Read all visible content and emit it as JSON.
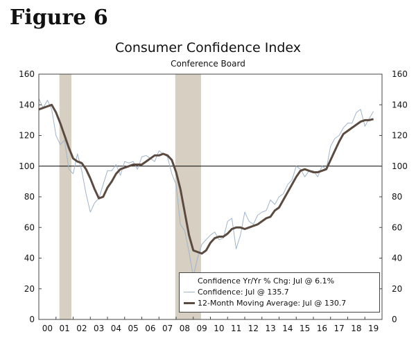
{
  "figure_label": "Figure 6",
  "chart_data": {
    "type": "line",
    "title": "Consumer Confidence Index",
    "subtitle": "Conference Board",
    "xlabel": "",
    "ylabel": "",
    "ylim": [
      0,
      160
    ],
    "y_ticks": [
      0,
      20,
      40,
      60,
      80,
      100,
      120,
      140,
      160
    ],
    "x_range": [
      2000,
      2020
    ],
    "x_tick_labels": [
      "00",
      "01",
      "02",
      "03",
      "04",
      "05",
      "06",
      "07",
      "08",
      "09",
      "10",
      "11",
      "12",
      "13",
      "14",
      "15",
      "16",
      "17",
      "18",
      "19"
    ],
    "reference_line": 100,
    "recessions": [
      [
        2001.2,
        2001.9
      ],
      [
        2007.95,
        2009.45
      ]
    ],
    "grid": false,
    "legend": {
      "placement": "bottom-right",
      "entries": [
        {
          "label": "Confidence Yr/Yr % Chg: Jul @ 6.1%",
          "color": "#ffffff"
        },
        {
          "label": "Confidence: Jul @ 135.7",
          "color": "#9fb4cc"
        },
        {
          "label": "12-Month Moving Average: Jul @ 130.7",
          "color": "#5b4a3f"
        }
      ]
    },
    "colors": {
      "recession": "#d6cfc2",
      "confidence": "#9fb4cc",
      "moving_average": "#5b4a3f",
      "reference": "#000000"
    },
    "series": [
      {
        "name": "Confidence: Jul @ 135.7",
        "x": [
          2000,
          2000.25,
          2000.5,
          2000.75,
          2001,
          2001.25,
          2001.5,
          2001.75,
          2002,
          2002.25,
          2002.5,
          2002.75,
          2003,
          2003.25,
          2003.5,
          2003.75,
          2004,
          2004.25,
          2004.5,
          2004.75,
          2005,
          2005.25,
          2005.5,
          2005.75,
          2006,
          2006.25,
          2006.5,
          2006.75,
          2007,
          2007.25,
          2007.5,
          2007.75,
          2008,
          2008.25,
          2008.5,
          2008.75,
          2009,
          2009.25,
          2009.5,
          2009.75,
          2010,
          2010.25,
          2010.5,
          2010.75,
          2011,
          2011.25,
          2011.5,
          2011.75,
          2012,
          2012.25,
          2012.5,
          2012.75,
          2013,
          2013.25,
          2013.5,
          2013.75,
          2014,
          2014.25,
          2014.5,
          2014.75,
          2015,
          2015.25,
          2015.5,
          2015.75,
          2016,
          2016.25,
          2016.5,
          2016.75,
          2017,
          2017.25,
          2017.5,
          2017.75,
          2018,
          2018.25,
          2018.5,
          2018.75,
          2019,
          2019.25,
          2019.5
        ],
        "values": [
          144,
          138,
          143,
          137,
          120,
          114,
          117,
          98,
          95,
          108,
          97,
          82,
          70,
          76,
          79,
          88,
          97,
          97,
          101,
          94,
          103,
          102,
          103,
          98,
          106,
          107,
          105,
          103,
          110,
          108,
          106,
          95,
          88,
          62,
          58,
          44,
          28,
          40,
          49,
          52,
          55,
          57,
          52,
          53,
          64,
          66,
          46,
          55,
          70,
          64,
          62,
          68,
          70,
          71,
          78,
          75,
          80,
          82,
          88,
          91,
          100,
          98,
          93,
          97,
          97,
          93,
          100,
          98,
          113,
          118,
          120,
          125,
          128,
          128,
          135,
          137,
          126,
          131,
          135.7
        ]
      },
      {
        "name": "12-Month Moving Average: Jul @ 130.7",
        "x": [
          2000,
          2000.25,
          2000.5,
          2000.75,
          2001,
          2001.25,
          2001.5,
          2001.75,
          2002,
          2002.25,
          2002.5,
          2002.75,
          2003,
          2003.25,
          2003.5,
          2003.75,
          2004,
          2004.25,
          2004.5,
          2004.75,
          2005,
          2005.25,
          2005.5,
          2005.75,
          2006,
          2006.25,
          2006.5,
          2006.75,
          2007,
          2007.25,
          2007.5,
          2007.75,
          2008,
          2008.25,
          2008.5,
          2008.75,
          2009,
          2009.25,
          2009.5,
          2009.75,
          2010,
          2010.25,
          2010.5,
          2010.75,
          2011,
          2011.25,
          2011.5,
          2011.75,
          2012,
          2012.25,
          2012.5,
          2012.75,
          2013,
          2013.25,
          2013.5,
          2013.75,
          2014,
          2014.25,
          2014.5,
          2014.75,
          2015,
          2015.25,
          2015.5,
          2015.75,
          2016,
          2016.25,
          2016.5,
          2016.75,
          2017,
          2017.25,
          2017.5,
          2017.75,
          2018,
          2018.25,
          2018.5,
          2018.75,
          2019,
          2019.25,
          2019.5
        ],
        "values": [
          137,
          138,
          139,
          140,
          135,
          128,
          120,
          112,
          105,
          103,
          102,
          98,
          92,
          85,
          79,
          80,
          86,
          90,
          95,
          98,
          99,
          100,
          101,
          101,
          101,
          103,
          105,
          107,
          107,
          108,
          107,
          104,
          96,
          85,
          70,
          55,
          45,
          44,
          43,
          45,
          50,
          53,
          54,
          54,
          56,
          59,
          60,
          60,
          59,
          60,
          61,
          62,
          64,
          66,
          67,
          71,
          73,
          78,
          83,
          88,
          93,
          97,
          98,
          97,
          96,
          96,
          97,
          98,
          104,
          110,
          116,
          121,
          123,
          125,
          127,
          129,
          130,
          130,
          130.7
        ]
      }
    ]
  }
}
